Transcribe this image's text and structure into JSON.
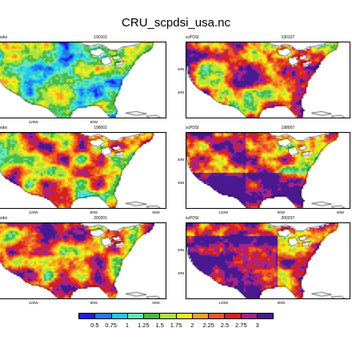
{
  "title": "CRU_scpdsi_usa.nc",
  "panels": [
    {
      "variable": "sdsi",
      "date": "190101",
      "x_ticks": [
        "120W",
        "90W"
      ],
      "y_ticks": [],
      "regime": "wet"
    },
    {
      "variable": "scPDSI",
      "date": "190107",
      "x_ticks": [],
      "y_ticks": [
        "40N",
        "30N"
      ],
      "regime": "mixed-dry"
    },
    {
      "variable": "sdsi",
      "date": "198001",
      "x_ticks": [
        "120W",
        "90W",
        "60W"
      ],
      "y_ticks": [],
      "regime": "mixed"
    },
    {
      "variable": "scPDSI",
      "date": "198007",
      "x_ticks": [
        "120W",
        "90W",
        "60W"
      ],
      "y_ticks": [
        "40N",
        "30N"
      ],
      "regime": "dry-south"
    },
    {
      "variable": "sdsi",
      "date": "200201",
      "x_ticks": [
        "120W",
        "90W",
        "60W"
      ],
      "y_ticks": [],
      "regime": "mixed-dry"
    },
    {
      "variable": "scPDSI",
      "date": "200207",
      "x_ticks": [
        "120W",
        "90W"
      ],
      "y_ticks": [
        "40N",
        "30N"
      ],
      "regime": "very-dry"
    }
  ],
  "colorbar": {
    "labels": [
      "0.5",
      "0.75",
      "1",
      "1.25",
      "1.5",
      "1.75",
      "2",
      "2.25",
      "2.5",
      "2.75",
      "3"
    ],
    "colors": [
      "#1c1cf5",
      "#1f7cf0",
      "#23c8ec",
      "#63e6b7",
      "#4bbb45",
      "#aee23c",
      "#f2ea19",
      "#f5a21f",
      "#ea5a24",
      "#d82020",
      "#a4238d",
      "#4a1990"
    ]
  },
  "colors": {
    "land_background": "#2ba84a",
    "ocean": "#ffffff",
    "lakes": "#ffffff",
    "coast": "#000000"
  }
}
